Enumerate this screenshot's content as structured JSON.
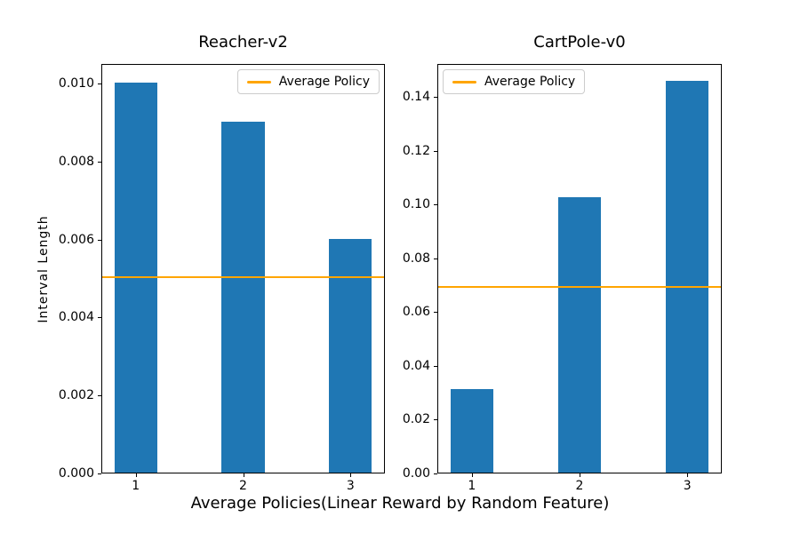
{
  "figure": {
    "xlabel": "Average Policies(Linear Reward by Random Feature)",
    "ylabel": "Interval Length",
    "background": "#ffffff",
    "text_color": "#000000"
  },
  "colors": {
    "bar": "#1f77b4",
    "average_line": "#ffa500",
    "axis": "#000000",
    "legend_border": "#cccccc",
    "legend_background": "#ffffff"
  },
  "chart_data": [
    {
      "type": "bar",
      "title": "Reacher-v2",
      "ylabel": "Interval Length",
      "categories": [
        "1",
        "2",
        "3"
      ],
      "x": [
        1,
        2,
        3
      ],
      "values": [
        0.01,
        0.009,
        0.006
      ],
      "bar_width": 0.4,
      "xlim": [
        0.68,
        3.32
      ],
      "ylim": [
        0,
        0.0105
      ],
      "yticks": [
        {
          "value": 0.0,
          "label": "0.000"
        },
        {
          "value": 0.002,
          "label": "0.002"
        },
        {
          "value": 0.004,
          "label": "0.004"
        },
        {
          "value": 0.006,
          "label": "0.006"
        },
        {
          "value": 0.008,
          "label": "0.008"
        },
        {
          "value": 0.01,
          "label": "0.010"
        }
      ],
      "hline": {
        "value": 0.005,
        "label": "Average Policy"
      },
      "legend": {
        "label": "Average Policy",
        "loc": "upper-right"
      },
      "grid": false
    },
    {
      "type": "bar",
      "title": "CartPole-v0",
      "categories": [
        "1",
        "2",
        "3"
      ],
      "x": [
        1,
        2,
        3
      ],
      "values": [
        0.031,
        0.1025,
        0.1455
      ],
      "bar_width": 0.4,
      "xlim": [
        0.68,
        3.32
      ],
      "ylim": [
        0,
        0.1522
      ],
      "yticks": [
        {
          "value": 0.0,
          "label": "0.00"
        },
        {
          "value": 0.02,
          "label": "0.02"
        },
        {
          "value": 0.04,
          "label": "0.04"
        },
        {
          "value": 0.06,
          "label": "0.06"
        },
        {
          "value": 0.08,
          "label": "0.08"
        },
        {
          "value": 0.1,
          "label": "0.10"
        },
        {
          "value": 0.12,
          "label": "0.12"
        },
        {
          "value": 0.14,
          "label": "0.14"
        }
      ],
      "hline": {
        "value": 0.069,
        "label": "Average Policy"
      },
      "legend": {
        "label": "Average Policy",
        "loc": "upper-left"
      },
      "grid": false
    }
  ]
}
